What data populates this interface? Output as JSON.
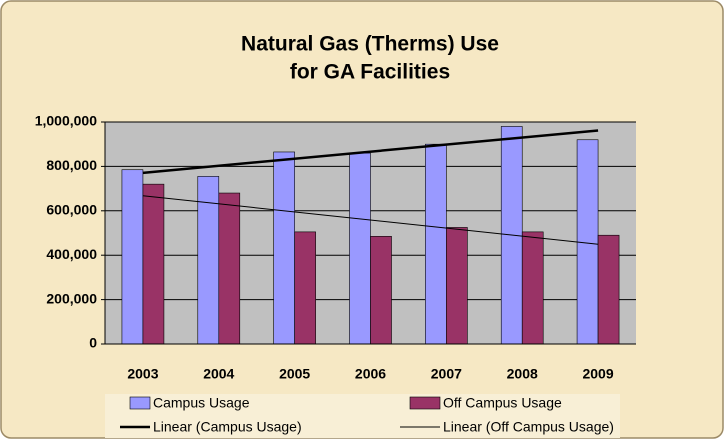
{
  "chart_data": {
    "type": "bar",
    "title": [
      "Natural Gas (Therms) Use",
      "for GA Facilities"
    ],
    "categories": [
      "2003",
      "2004",
      "2005",
      "2006",
      "2007",
      "2008",
      "2009"
    ],
    "series": [
      {
        "name": "Campus Usage",
        "color": "#9999ff",
        "values": [
          785000,
          755000,
          865000,
          860000,
          900000,
          980000,
          920000
        ]
      },
      {
        "name": "Off Campus Usage",
        "color": "#993366",
        "values": [
          720000,
          680000,
          505000,
          485000,
          525000,
          505000,
          490000
        ]
      }
    ],
    "trendlines": [
      {
        "name": "Linear (Campus Usage)",
        "series": 0,
        "width": 2.5,
        "color": "#000000"
      },
      {
        "name": "Linear (Off Campus Usage)",
        "series": 1,
        "width": 1,
        "color": "#000000"
      }
    ],
    "ylim": [
      0,
      1000000
    ],
    "yticks": [
      0,
      {
        "value": 200000,
        "label": "200,000"
      },
      {
        "value": 400000,
        "label": "400,000"
      },
      {
        "value": 600000,
        "label": "600,000"
      },
      {
        "value": 800000,
        "label": "800,000"
      },
      {
        "value": 1000000,
        "label": "1,000,000"
      }
    ],
    "grid": true
  }
}
